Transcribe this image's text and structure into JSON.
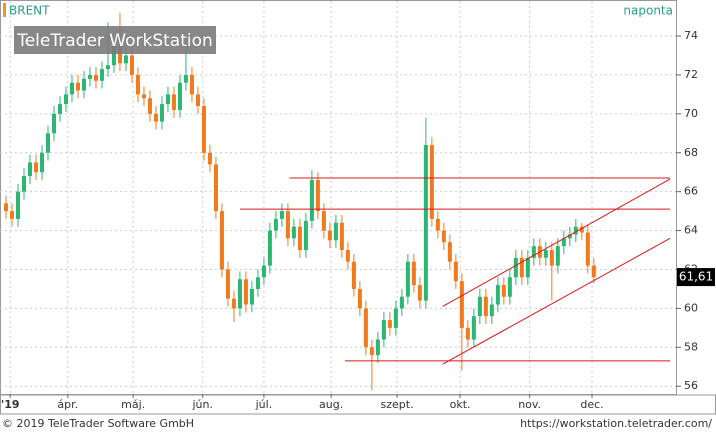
{
  "chart_data": {
    "type": "candlestick",
    "title": "BRENT",
    "interval": "naponta",
    "watermark": "TeleTrader WorkStation",
    "footer_left": "© 2019 TeleTrader Software GmbH",
    "footer_right": "https://workstation.teletrader.com/",
    "up_color": "#2bb673",
    "down_color": "#f07a1e",
    "line_color": "#d81818",
    "xlim": [
      -1,
      111.7
    ],
    "ylim": [
      55.6,
      75.8
    ],
    "yticks": [
      56,
      58,
      60,
      62,
      64,
      66,
      68,
      70,
      72,
      74
    ],
    "xticks": [
      {
        "value": 0.7,
        "label": "'19"
      },
      {
        "value": 10.3,
        "label": "ápr."
      },
      {
        "value": 21.2,
        "label": "máj."
      },
      {
        "value": 32.8,
        "label": "jún."
      },
      {
        "value": 43,
        "label": "júl."
      },
      {
        "value": 54.2,
        "label": "aug."
      },
      {
        "value": 65.2,
        "label": "szept."
      },
      {
        "value": 75.7,
        "label": "okt."
      },
      {
        "value": 87.3,
        "label": "nov."
      },
      {
        "value": 97.7,
        "label": "dec."
      }
    ],
    "grid": true,
    "last": {
      "value": 61.61,
      "label": "61,61"
    },
    "open": [
      65.4,
      65.0,
      64.6,
      66.0,
      66.8,
      67.5,
      67.0,
      68.0,
      69.0,
      70.0,
      70.5,
      71.0,
      71.6,
      71.2,
      71.8,
      72.0,
      71.7,
      72.3,
      72.5,
      73.5,
      72.6,
      73.0,
      72.0,
      71.0,
      70.8,
      70.0,
      69.6,
      70.5,
      71.0,
      70.2,
      71.6,
      72.0,
      71.0,
      70.4,
      68.0,
      67.4,
      65.0,
      62.0,
      60.5,
      60.0,
      61.5,
      60.2,
      61.0,
      61.6,
      62.2,
      64.0,
      64.6,
      65.0,
      63.6,
      64.2,
      63.0,
      64.5,
      66.6,
      65.0,
      64.0,
      63.5,
      64.4,
      63.0,
      62.4,
      61.0,
      60.0,
      58.0,
      57.6,
      58.4,
      59.4,
      59.0,
      60.0,
      60.6,
      62.4,
      61.2,
      60.4,
      68.4,
      64.6,
      64.0,
      63.4,
      62.4,
      61.4,
      59.0,
      58.4,
      59.6,
      60.6,
      59.6,
      60.2,
      61.2,
      60.6,
      61.6,
      62.6,
      61.6,
      62.6,
      63.2,
      62.6,
      63.0,
      62.2,
      63.2,
      63.6,
      63.8,
      64.2,
      63.9,
      62.2
    ],
    "high": [
      65.8,
      65.4,
      66.4,
      67.2,
      67.9,
      67.9,
      68.4,
      69.4,
      70.4,
      70.9,
      71.4,
      72.0,
      72.0,
      72.2,
      72.4,
      72.4,
      72.7,
      74.7,
      73.9,
      75.2,
      73.4,
      73.4,
      72.4,
      71.4,
      71.2,
      70.4,
      70.9,
      71.4,
      71.4,
      72.0,
      73.4,
      72.4,
      71.4,
      70.8,
      68.4,
      67.8,
      65.4,
      62.4,
      60.9,
      61.9,
      61.9,
      61.4,
      62.0,
      62.6,
      64.4,
      65.0,
      65.4,
      65.4,
      64.6,
      64.6,
      64.9,
      67.1,
      67.0,
      65.4,
      64.4,
      64.8,
      64.8,
      63.4,
      62.8,
      61.4,
      60.4,
      58.4,
      58.8,
      59.8,
      59.8,
      60.4,
      61.0,
      62.8,
      62.8,
      61.6,
      69.8,
      68.8,
      65.0,
      64.4,
      63.8,
      62.8,
      61.8,
      59.4,
      60.0,
      61.0,
      61.0,
      60.6,
      61.6,
      61.6,
      62.0,
      63.0,
      63.0,
      63.0,
      63.6,
      63.6,
      63.4,
      63.4,
      63.6,
      64.0,
      64.2,
      64.6,
      64.4,
      64.3,
      62.6
    ],
    "low": [
      64.6,
      64.2,
      64.2,
      65.6,
      66.4,
      66.6,
      66.6,
      67.6,
      68.6,
      69.6,
      70.1,
      70.6,
      70.8,
      70.8,
      71.4,
      71.3,
      71.3,
      71.9,
      72.1,
      72.2,
      72.2,
      71.6,
      70.6,
      70.4,
      69.6,
      69.2,
      69.2,
      70.1,
      69.8,
      69.8,
      71.2,
      70.6,
      70.0,
      67.6,
      67.0,
      64.6,
      61.6,
      60.1,
      59.3,
      59.6,
      59.8,
      59.8,
      60.6,
      61.2,
      61.8,
      63.6,
      64.2,
      63.2,
      63.2,
      62.6,
      62.6,
      64.1,
      64.6,
      63.6,
      63.1,
      63.1,
      62.6,
      62.0,
      60.6,
      59.6,
      57.6,
      55.8,
      57.2,
      58.0,
      58.6,
      58.6,
      59.6,
      60.2,
      60.8,
      60.0,
      60.0,
      64.2,
      63.6,
      63.0,
      62.0,
      61.0,
      56.8,
      58.0,
      58.0,
      59.2,
      59.2,
      59.2,
      59.8,
      60.2,
      60.2,
      61.2,
      61.2,
      61.2,
      62.2,
      62.2,
      62.2,
      60.4,
      61.8,
      62.8,
      63.2,
      63.4,
      63.5,
      61.8,
      61.3
    ],
    "close": [
      65.0,
      64.6,
      66.0,
      66.8,
      67.5,
      67.0,
      68.0,
      69.0,
      70.0,
      70.5,
      71.0,
      71.6,
      71.2,
      71.8,
      72.0,
      71.7,
      72.3,
      72.5,
      73.5,
      72.6,
      73.0,
      72.0,
      71.0,
      70.8,
      70.0,
      69.6,
      70.5,
      71.0,
      70.2,
      71.6,
      72.0,
      71.0,
      70.4,
      68.0,
      67.4,
      65.0,
      62.0,
      60.5,
      60.0,
      61.5,
      60.2,
      61.0,
      61.6,
      62.2,
      64.0,
      64.6,
      65.0,
      63.6,
      64.2,
      63.0,
      64.5,
      66.6,
      65.0,
      64.0,
      63.5,
      64.4,
      63.0,
      62.4,
      61.0,
      60.0,
      58.0,
      57.6,
      58.4,
      59.4,
      59.0,
      60.0,
      60.6,
      62.4,
      61.2,
      60.4,
      68.4,
      64.6,
      64.0,
      63.4,
      62.4,
      61.4,
      59.0,
      58.4,
      59.6,
      60.6,
      59.6,
      60.2,
      61.2,
      60.6,
      61.6,
      62.6,
      61.6,
      62.6,
      63.2,
      62.6,
      63.0,
      62.2,
      63.2,
      63.6,
      63.8,
      64.2,
      63.9,
      62.2,
      61.61
    ],
    "lines": [
      {
        "x": [
          47.3,
          110.7
        ],
        "y": [
          66.7,
          66.7
        ]
      },
      {
        "x": [
          39,
          110.7
        ],
        "y": [
          65.1,
          65.1
        ]
      },
      {
        "x": [
          56.5,
          110.7
        ],
        "y": [
          57.3,
          57.3
        ]
      },
      {
        "x": [
          72.8,
          110.7
        ],
        "y": [
          60.1,
          66.65
        ]
      },
      {
        "x": [
          72.8,
          110.7
        ],
        "y": [
          57.13,
          63.6
        ]
      }
    ]
  }
}
